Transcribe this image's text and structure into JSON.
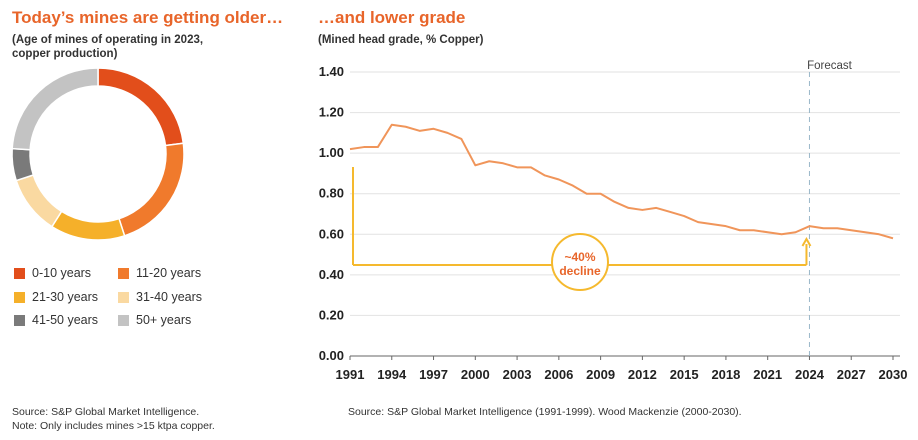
{
  "left_panel": {
    "title": "Today’s mines are getting older…",
    "subtitle": "(Age of mines of operating in 2023, copper production)",
    "source_line1": "Source: S&P Global Market Intelligence.",
    "source_line2": "Note: Only includes mines >15 ktpa copper."
  },
  "right_panel": {
    "title": "…and lower grade",
    "subtitle": "(Mined head grade, % Copper)",
    "source": "Source: S&P Global Market Intelligence (1991-1999). Wood Mackenzie (2000-2030).",
    "forecast_label": "Forecast",
    "annotation_line1": "~40%",
    "annotation_line2": "decline"
  },
  "colors": {
    "0-10": "#e24e1b",
    "11-20": "#f07a2c",
    "21-30": "#f5b02a",
    "31-40": "#fad9a1",
    "41-50": "#7a7a7a",
    "50+": "#c3c3c3",
    "line": "#f0955a",
    "annotation": "#f5b92e",
    "grid": "#e2e2e2"
  },
  "chart_data": [
    {
      "type": "pie",
      "donut": true,
      "title": "Today’s mines are getting older…",
      "subtitle": "(Age of mines of operating in 2023, copper production)",
      "legend_position": "bottom",
      "slices": [
        {
          "label": "0-10 years",
          "value": 23
        },
        {
          "label": "11-20 years",
          "value": 22
        },
        {
          "label": "21-30 years",
          "value": 14
        },
        {
          "label": "31-40 years",
          "value": 11
        },
        {
          "label": "41-50 years",
          "value": 6
        },
        {
          "label": "50+ years",
          "value": 24
        }
      ]
    },
    {
      "type": "line",
      "title": "…and lower grade",
      "subtitle": "(Mined head grade, % Copper)",
      "ylim": [
        0,
        1.4
      ],
      "yticks": [
        "0.00",
        "0.20",
        "0.40",
        "0.60",
        "0.80",
        "1.00",
        "1.20",
        "1.40"
      ],
      "xlim": [
        1991,
        2030
      ],
      "xticks": [
        "1991",
        "1994",
        "1997",
        "2000",
        "2003",
        "2006",
        "2009",
        "2012",
        "2015",
        "2018",
        "2021",
        "2024",
        "2027",
        "2030"
      ],
      "grid": "horizontal",
      "forecast_start": 2024,
      "series": [
        {
          "x": [
            1991,
            1992,
            1993,
            1994,
            1995,
            1996,
            1997,
            1998,
            1999,
            2000,
            2001,
            2002,
            2003,
            2004,
            2005,
            2006,
            2007,
            2008,
            2009,
            2010,
            2011,
            2012,
            2013,
            2014,
            2015,
            2016,
            2017,
            2018,
            2019,
            2020,
            2021,
            2022,
            2023,
            2024,
            2025,
            2026,
            2027,
            2028,
            2029,
            2030
          ],
          "y": [
            1.02,
            1.03,
            1.03,
            1.14,
            1.13,
            1.11,
            1.12,
            1.1,
            1.07,
            0.94,
            0.96,
            0.95,
            0.93,
            0.93,
            0.89,
            0.87,
            0.84,
            0.8,
            0.8,
            0.76,
            0.73,
            0.72,
            0.73,
            0.71,
            0.69,
            0.66,
            0.65,
            0.64,
            0.62,
            0.62,
            0.61,
            0.6,
            0.61,
            0.64,
            0.63,
            0.63,
            0.62,
            0.61,
            0.6,
            0.58
          ]
        }
      ],
      "annotation": {
        "text": "~40% decline",
        "from_year": 1991,
        "to_year": 2024
      }
    }
  ]
}
